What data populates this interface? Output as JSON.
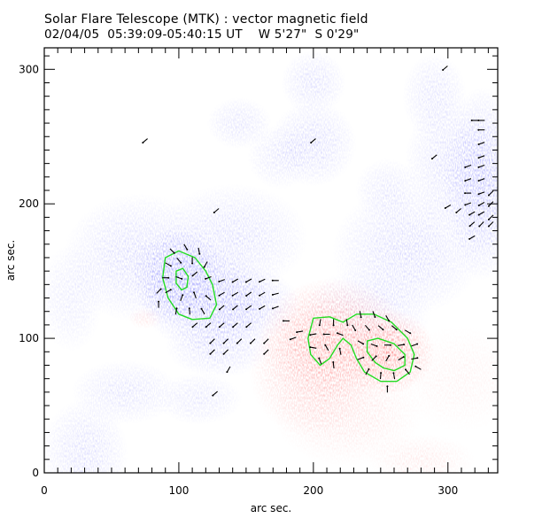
{
  "header": {
    "title": "Solar Flare Telescope (MTK) : vector magnetic field",
    "subtitle": "02/04/05  05:39:09-05:40:15 UT    W 5'27\"  S 0'29\""
  },
  "colors": {
    "negative": "#3b3bff",
    "positive": "#ff2a2a",
    "contour": "#22dd22",
    "vector": "#000000"
  },
  "chart_data": {
    "type": "heatmap",
    "title": "Solar Flare Telescope (MTK) : vector magnetic field",
    "xlabel": "arc sec.",
    "ylabel": "arc sec.",
    "xlim": [
      0,
      337
    ],
    "ylim": [
      0,
      316
    ],
    "xticks": [
      0,
      100,
      200,
      300
    ],
    "yticks": [
      0,
      100,
      200,
      300
    ],
    "xtick_labels": [
      "0",
      "100",
      "200",
      "300"
    ],
    "ytick_labels": [
      "0",
      "100",
      "200",
      "300"
    ],
    "minor_tick_step": 10,
    "legend": "none",
    "polarity_regions": [
      {
        "polarity": "negative",
        "x": 100,
        "y": 145,
        "rx": 22,
        "ry": 24,
        "strength": 1.0
      },
      {
        "polarity": "negative",
        "x": 120,
        "y": 130,
        "rx": 30,
        "ry": 25,
        "strength": 0.7
      },
      {
        "polarity": "negative",
        "x": 150,
        "y": 125,
        "rx": 25,
        "ry": 18,
        "strength": 0.55
      },
      {
        "polarity": "negative",
        "x": 70,
        "y": 160,
        "rx": 35,
        "ry": 30,
        "strength": 0.45
      },
      {
        "polarity": "negative",
        "x": 140,
        "y": 175,
        "rx": 35,
        "ry": 25,
        "strength": 0.4
      },
      {
        "polarity": "negative",
        "x": 130,
        "y": 95,
        "rx": 25,
        "ry": 15,
        "strength": 0.45
      },
      {
        "polarity": "negative",
        "x": 325,
        "y": 215,
        "rx": 18,
        "ry": 45,
        "strength": 0.75
      },
      {
        "polarity": "negative",
        "x": 300,
        "y": 230,
        "rx": 20,
        "ry": 30,
        "strength": 0.4
      },
      {
        "polarity": "negative",
        "x": 270,
        "y": 165,
        "rx": 35,
        "ry": 30,
        "strength": 0.45
      },
      {
        "polarity": "negative",
        "x": 240,
        "y": 120,
        "rx": 30,
        "ry": 20,
        "strength": 0.35
      },
      {
        "polarity": "negative",
        "x": 200,
        "y": 290,
        "rx": 15,
        "ry": 15,
        "strength": 0.4
      },
      {
        "polarity": "negative",
        "x": 200,
        "y": 245,
        "rx": 20,
        "ry": 20,
        "strength": 0.45
      },
      {
        "polarity": "negative",
        "x": 145,
        "y": 260,
        "rx": 15,
        "ry": 12,
        "strength": 0.35
      },
      {
        "polarity": "negative",
        "x": 175,
        "y": 235,
        "rx": 15,
        "ry": 15,
        "strength": 0.3
      },
      {
        "polarity": "negative",
        "x": 60,
        "y": 60,
        "rx": 25,
        "ry": 15,
        "strength": 0.35
      },
      {
        "polarity": "negative",
        "x": 30,
        "y": 15,
        "rx": 20,
        "ry": 25,
        "strength": 0.4
      },
      {
        "polarity": "negative",
        "x": 115,
        "y": 55,
        "rx": 20,
        "ry": 12,
        "strength": 0.3
      },
      {
        "polarity": "negative",
        "x": 290,
        "y": 280,
        "rx": 15,
        "ry": 20,
        "strength": 0.35
      },
      {
        "polarity": "negative",
        "x": 255,
        "y": 210,
        "rx": 15,
        "ry": 15,
        "strength": 0.3
      },
      {
        "polarity": "negative",
        "x": 20,
        "y": 130,
        "rx": 15,
        "ry": 25,
        "strength": 0.25
      },
      {
        "polarity": "positive",
        "x": 215,
        "y": 100,
        "rx": 35,
        "ry": 28,
        "strength": 0.85
      },
      {
        "polarity": "positive",
        "x": 255,
        "y": 90,
        "rx": 22,
        "ry": 20,
        "strength": 1.0
      },
      {
        "polarity": "positive",
        "x": 200,
        "y": 75,
        "rx": 30,
        "ry": 30,
        "strength": 0.5
      },
      {
        "polarity": "positive",
        "x": 225,
        "y": 45,
        "rx": 35,
        "ry": 25,
        "strength": 0.25
      },
      {
        "polarity": "positive",
        "x": 280,
        "y": 10,
        "rx": 25,
        "ry": 12,
        "strength": 0.2
      },
      {
        "polarity": "positive",
        "x": 75,
        "y": 115,
        "rx": 8,
        "ry": 5,
        "strength": 0.25
      },
      {
        "polarity": "positive",
        "x": 310,
        "y": 70,
        "rx": 30,
        "ry": 25,
        "strength": 0.12
      }
    ],
    "contours": [
      {
        "polarity": "negative",
        "level": "outer",
        "points": [
          [
            90,
            160
          ],
          [
            100,
            165
          ],
          [
            112,
            160
          ],
          [
            120,
            150
          ],
          [
            125,
            140
          ],
          [
            128,
            125
          ],
          [
            123,
            115
          ],
          [
            110,
            114
          ],
          [
            100,
            118
          ],
          [
            92,
            130
          ],
          [
            88,
            145
          ],
          [
            90,
            160
          ]
        ]
      },
      {
        "polarity": "negative",
        "level": "inner",
        "points": [
          [
            98,
            150
          ],
          [
            103,
            152
          ],
          [
            107,
            146
          ],
          [
            106,
            138
          ],
          [
            102,
            136
          ],
          [
            98,
            141
          ],
          [
            98,
            150
          ]
        ]
      },
      {
        "polarity": "positive",
        "level": "outer",
        "points": [
          [
            200,
            115
          ],
          [
            212,
            116
          ],
          [
            222,
            112
          ],
          [
            232,
            118
          ],
          [
            245,
            118
          ],
          [
            258,
            112
          ],
          [
            270,
            100
          ],
          [
            275,
            88
          ],
          [
            272,
            75
          ],
          [
            262,
            68
          ],
          [
            250,
            68
          ],
          [
            238,
            75
          ],
          [
            232,
            85
          ],
          [
            228,
            95
          ],
          [
            222,
            100
          ],
          [
            218,
            95
          ],
          [
            212,
            85
          ],
          [
            205,
            80
          ],
          [
            198,
            88
          ],
          [
            196,
            100
          ],
          [
            200,
            115
          ]
        ]
      },
      {
        "polarity": "positive",
        "level": "inner",
        "points": [
          [
            240,
            98
          ],
          [
            248,
            100
          ],
          [
            260,
            96
          ],
          [
            268,
            88
          ],
          [
            268,
            80
          ],
          [
            260,
            76
          ],
          [
            252,
            78
          ],
          [
            246,
            82
          ],
          [
            240,
            90
          ],
          [
            240,
            98
          ]
        ]
      }
    ],
    "vectors": {
      "description": "transverse field azimuth",
      "samples": [
        {
          "x": 95,
          "y": 165,
          "angle": -45
        },
        {
          "x": 105,
          "y": 168,
          "angle": -60
        },
        {
          "x": 115,
          "y": 165,
          "angle": -80
        },
        {
          "x": 92,
          "y": 155,
          "angle": -30
        },
        {
          "x": 100,
          "y": 158,
          "angle": -50
        },
        {
          "x": 110,
          "y": 158,
          "angle": -90
        },
        {
          "x": 120,
          "y": 155,
          "angle": -120
        },
        {
          "x": 90,
          "y": 145,
          "angle": 0
        },
        {
          "x": 100,
          "y": 145,
          "angle": -20
        },
        {
          "x": 112,
          "y": 148,
          "angle": -140
        },
        {
          "x": 122,
          "y": 145,
          "angle": -160
        },
        {
          "x": 92,
          "y": 135,
          "angle": 30
        },
        {
          "x": 102,
          "y": 130,
          "angle": 70
        },
        {
          "x": 112,
          "y": 132,
          "angle": 110
        },
        {
          "x": 122,
          "y": 130,
          "angle": 140
        },
        {
          "x": 98,
          "y": 120,
          "angle": 80
        },
        {
          "x": 108,
          "y": 120,
          "angle": 95
        },
        {
          "x": 118,
          "y": 120,
          "angle": 120
        },
        {
          "x": 132,
          "y": 143,
          "angle": -160
        },
        {
          "x": 142,
          "y": 143,
          "angle": -150
        },
        {
          "x": 152,
          "y": 143,
          "angle": -150
        },
        {
          "x": 162,
          "y": 143,
          "angle": -155
        },
        {
          "x": 172,
          "y": 143,
          "angle": 180
        },
        {
          "x": 132,
          "y": 133,
          "angle": -150
        },
        {
          "x": 142,
          "y": 133,
          "angle": -150
        },
        {
          "x": 152,
          "y": 133,
          "angle": -145
        },
        {
          "x": 162,
          "y": 133,
          "angle": -150
        },
        {
          "x": 172,
          "y": 133,
          "angle": -165
        },
        {
          "x": 132,
          "y": 123,
          "angle": -140
        },
        {
          "x": 142,
          "y": 123,
          "angle": -140
        },
        {
          "x": 152,
          "y": 123,
          "angle": -145
        },
        {
          "x": 162,
          "y": 123,
          "angle": -150
        },
        {
          "x": 172,
          "y": 123,
          "angle": -160
        },
        {
          "x": 112,
          "y": 110,
          "angle": -140
        },
        {
          "x": 122,
          "y": 110,
          "angle": -140
        },
        {
          "x": 132,
          "y": 110,
          "angle": -140
        },
        {
          "x": 142,
          "y": 110,
          "angle": -140
        },
        {
          "x": 152,
          "y": 110,
          "angle": -140
        },
        {
          "x": 125,
          "y": 98,
          "angle": -135
        },
        {
          "x": 135,
          "y": 98,
          "angle": -135
        },
        {
          "x": 145,
          "y": 98,
          "angle": -135
        },
        {
          "x": 155,
          "y": 98,
          "angle": -135
        },
        {
          "x": 165,
          "y": 98,
          "angle": -135
        },
        {
          "x": 125,
          "y": 90,
          "angle": -135
        },
        {
          "x": 135,
          "y": 90,
          "angle": -135
        },
        {
          "x": 165,
          "y": 90,
          "angle": -135
        },
        {
          "x": 85,
          "y": 125,
          "angle": 90
        },
        {
          "x": 85,
          "y": 135,
          "angle": 45
        },
        {
          "x": 205,
          "y": 112,
          "angle": -100
        },
        {
          "x": 215,
          "y": 112,
          "angle": -90
        },
        {
          "x": 225,
          "y": 112,
          "angle": -80
        },
        {
          "x": 235,
          "y": 118,
          "angle": -80
        },
        {
          "x": 245,
          "y": 118,
          "angle": -70
        },
        {
          "x": 255,
          "y": 115,
          "angle": -60
        },
        {
          "x": 200,
          "y": 103,
          "angle": -170
        },
        {
          "x": 210,
          "y": 103,
          "angle": 180
        },
        {
          "x": 220,
          "y": 103,
          "angle": 160
        },
        {
          "x": 230,
          "y": 108,
          "angle": -60
        },
        {
          "x": 240,
          "y": 108,
          "angle": -50
        },
        {
          "x": 250,
          "y": 108,
          "angle": -40
        },
        {
          "x": 260,
          "y": 108,
          "angle": -40
        },
        {
          "x": 270,
          "y": 105,
          "angle": -30
        },
        {
          "x": 200,
          "y": 93,
          "angle": 170
        },
        {
          "x": 210,
          "y": 93,
          "angle": 120
        },
        {
          "x": 220,
          "y": 90,
          "angle": 100
        },
        {
          "x": 235,
          "y": 97,
          "angle": -30
        },
        {
          "x": 245,
          "y": 95,
          "angle": -20
        },
        {
          "x": 255,
          "y": 95,
          "angle": 0
        },
        {
          "x": 265,
          "y": 95,
          "angle": 10
        },
        {
          "x": 275,
          "y": 95,
          "angle": 20
        },
        {
          "x": 205,
          "y": 83,
          "angle": 110
        },
        {
          "x": 215,
          "y": 80,
          "angle": 95
        },
        {
          "x": 235,
          "y": 85,
          "angle": 20
        },
        {
          "x": 245,
          "y": 85,
          "angle": 45
        },
        {
          "x": 255,
          "y": 85,
          "angle": 60
        },
        {
          "x": 265,
          "y": 85,
          "angle": 30
        },
        {
          "x": 275,
          "y": 85,
          "angle": 10
        },
        {
          "x": 240,
          "y": 75,
          "angle": 60
        },
        {
          "x": 250,
          "y": 72,
          "angle": 85
        },
        {
          "x": 260,
          "y": 72,
          "angle": 100
        },
        {
          "x": 270,
          "y": 75,
          "angle": 130
        },
        {
          "x": 278,
          "y": 78,
          "angle": 150
        },
        {
          "x": 255,
          "y": 62,
          "angle": 90
        },
        {
          "x": 180,
          "y": 113,
          "angle": 180
        },
        {
          "x": 190,
          "y": 105,
          "angle": -170
        },
        {
          "x": 185,
          "y": 100,
          "angle": -160
        },
        {
          "x": 325,
          "y": 262,
          "angle": 180
        },
        {
          "x": 320,
          "y": 262,
          "angle": 180
        },
        {
          "x": 325,
          "y": 255,
          "angle": 180
        },
        {
          "x": 325,
          "y": 245,
          "angle": -160
        },
        {
          "x": 325,
          "y": 235,
          "angle": -160
        },
        {
          "x": 315,
          "y": 228,
          "angle": -160
        },
        {
          "x": 325,
          "y": 228,
          "angle": -160
        },
        {
          "x": 315,
          "y": 218,
          "angle": -160
        },
        {
          "x": 325,
          "y": 218,
          "angle": -160
        },
        {
          "x": 315,
          "y": 208,
          "angle": 180
        },
        {
          "x": 325,
          "y": 208,
          "angle": -160
        },
        {
          "x": 332,
          "y": 208,
          "angle": -135
        },
        {
          "x": 315,
          "y": 200,
          "angle": -160
        },
        {
          "x": 325,
          "y": 200,
          "angle": -150
        },
        {
          "x": 332,
          "y": 200,
          "angle": -135
        },
        {
          "x": 300,
          "y": 198,
          "angle": -150
        },
        {
          "x": 308,
          "y": 195,
          "angle": -140
        },
        {
          "x": 318,
          "y": 193,
          "angle": -150
        },
        {
          "x": 325,
          "y": 193,
          "angle": -150
        },
        {
          "x": 332,
          "y": 190,
          "angle": -135
        },
        {
          "x": 318,
          "y": 185,
          "angle": -140
        },
        {
          "x": 325,
          "y": 185,
          "angle": -135
        },
        {
          "x": 332,
          "y": 185,
          "angle": -135
        },
        {
          "x": 318,
          "y": 175,
          "angle": -150
        },
        {
          "x": 75,
          "y": 247,
          "angle": -140
        },
        {
          "x": 200,
          "y": 247,
          "angle": -140
        },
        {
          "x": 298,
          "y": 301,
          "angle": -140
        },
        {
          "x": 290,
          "y": 235,
          "angle": -140
        },
        {
          "x": 128,
          "y": 195,
          "angle": -140
        },
        {
          "x": 127,
          "y": 59,
          "angle": -140
        },
        {
          "x": 137,
          "y": 77,
          "angle": -120
        }
      ]
    }
  }
}
